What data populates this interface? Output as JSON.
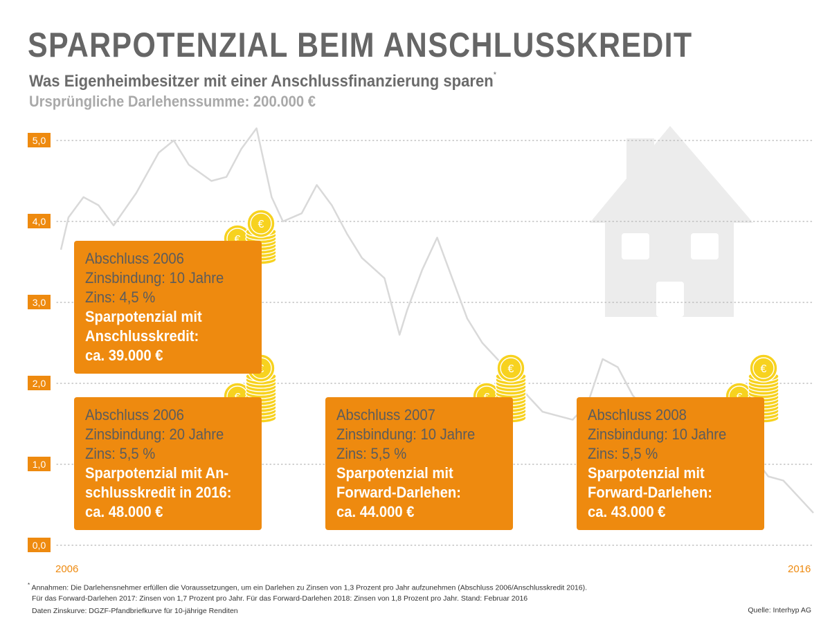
{
  "header": {
    "title": "SPARPOTENZIAL BEIM ANSCHLUSSKREDIT",
    "subtitle": "Was Eigenheimbesitzer mit einer Anschlussfinanzierung sparen",
    "subtitle_mark": "*",
    "subtitle2": "Ursprüngliche Darlehenssumme: 200.000 €"
  },
  "colors": {
    "accent": "#ee8a0f",
    "curve": "#d9d9d9",
    "house": "#ececec",
    "coin": "#f7d21f",
    "text_dark": "#666666"
  },
  "chart_data": {
    "type": "line",
    "title": "",
    "xlabel": "",
    "ylabel": "",
    "xlim": [
      2006,
      2016
    ],
    "ylim": [
      0,
      5
    ],
    "yticks": [
      "5,0",
      "4,0",
      "3,0",
      "2,0",
      "1,0",
      "0,0"
    ],
    "x_tick_labels": [
      "2006",
      "2016"
    ],
    "grid": "horizontal dotted",
    "series": [
      {
        "name": "",
        "x": [
          2006.0,
          2006.1,
          2006.3,
          2006.5,
          2006.7,
          2007.0,
          2007.3,
          2007.5,
          2007.7,
          2008.0,
          2008.2,
          2008.4,
          2008.6,
          2008.8,
          2008.95,
          2009.2,
          2009.4,
          2009.6,
          2009.8,
          2010.0,
          2010.3,
          2010.5,
          2010.6,
          2010.8,
          2011.0,
          2011.2,
          2011.4,
          2011.6,
          2011.8,
          2012.0,
          2012.2,
          2012.4,
          2012.6,
          2012.8,
          2013.0,
          2013.2,
          2013.4,
          2013.6,
          2013.8,
          2014.0,
          2014.2,
          2014.4,
          2014.6,
          2014.8,
          2015.0,
          2015.2,
          2015.4,
          2015.6,
          2015.8,
          2016.0
        ],
        "y": [
          3.65,
          4.05,
          4.3,
          4.2,
          3.95,
          4.35,
          4.85,
          5.0,
          4.7,
          4.5,
          4.55,
          4.9,
          5.15,
          4.3,
          4.0,
          4.1,
          4.45,
          4.2,
          3.85,
          3.55,
          3.3,
          2.6,
          2.9,
          3.4,
          3.8,
          3.3,
          2.8,
          2.5,
          2.3,
          2.1,
          1.85,
          1.65,
          1.6,
          1.55,
          1.75,
          2.3,
          2.2,
          1.85,
          1.65,
          1.6,
          1.4,
          1.05,
          1.0,
          0.95,
          0.7,
          1.1,
          0.85,
          0.8,
          0.6,
          0.4
        ]
      }
    ],
    "annotations": [
      {
        "anchor": "2006",
        "lines": [
          "Abschluss 2006",
          "Zinsbindung: 10 Jahre",
          "Zins: 4,5 %"
        ],
        "highlight": [
          "Sparpotenzial mit",
          "Anschlusskredit:",
          "ca. 39.000 €"
        ]
      },
      {
        "anchor": "2006",
        "lines": [
          "Abschluss 2006",
          "Zinsbindung: 20 Jahre",
          "Zins: 5,5 %"
        ],
        "highlight": [
          "Sparpotenzial mit An-",
          "schlusskredit in 2016:",
          "ca. 48.000 €"
        ]
      },
      {
        "anchor": "2007",
        "lines": [
          "Abschluss 2007",
          "Zinsbindung: 10 Jahre",
          "Zins: 5,5 %"
        ],
        "highlight": [
          "Sparpotenzial mit",
          "Forward-Darlehen:",
          "ca. 44.000 €"
        ]
      },
      {
        "anchor": "2008",
        "lines": [
          "Abschluss 2008",
          "Zinsbindung: 10 Jahre",
          "Zins: 5,5 %"
        ],
        "highlight": [
          "Sparpotenzial mit",
          "Forward-Darlehen:",
          "ca. 43.000 €"
        ]
      }
    ],
    "coin_symbol": "€"
  },
  "footer": {
    "note_mark": "*",
    "note1": "Annahmen: Die Darlehensnehmer erfüllen die Voraussetzungen, um ein Darlehen zu Zinsen von 1,3 Prozent pro Jahr aufzunehmen (Abschluss 2006/Anschlusskredit 2016).",
    "note2": "Für das Forward-Darlehen 2017: Zinsen von 1,7 Prozent pro Jahr. Für das Forward-Darlehen 2018: Zinsen von 1,8 Prozent pro Jahr. Stand: Februar 2016",
    "note3": "Daten Zinskurve: DGZF-Pfandbriefkurve für 10-jährige Renditen",
    "source": "Quelle: Interhyp AG"
  }
}
